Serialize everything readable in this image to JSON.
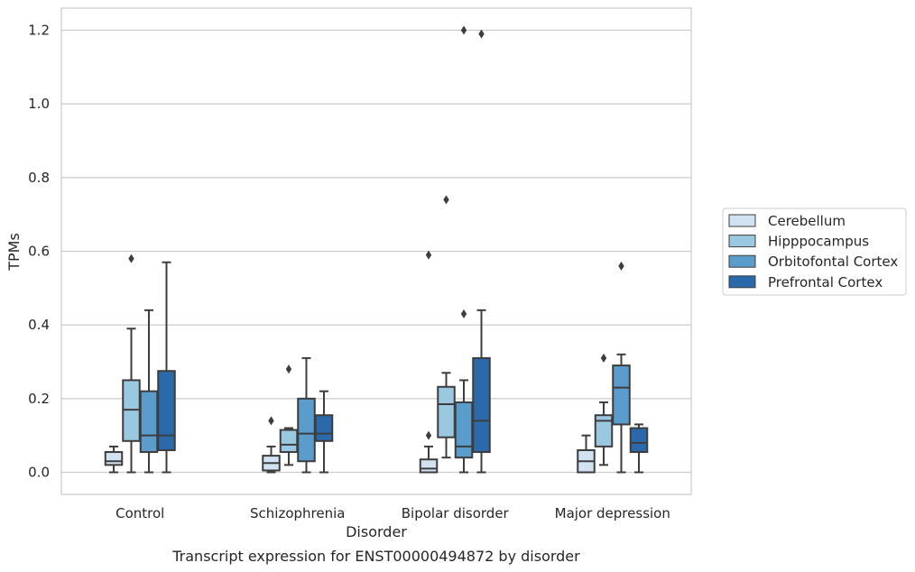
{
  "chart_data": {
    "type": "box",
    "caption": "Transcript expression for ENST00000494872 by disorder",
    "xlabel": "Disorder",
    "ylabel": "TPMs",
    "ylim": [
      -0.06,
      1.26
    ],
    "yticks": [
      0.0,
      0.2,
      0.4,
      0.6,
      0.8,
      1.0,
      1.2
    ],
    "ytick_labels": [
      "0.0",
      "0.2",
      "0.4",
      "0.6",
      "0.8",
      "1.0",
      "1.2"
    ],
    "grid": "horizontal",
    "legend_position": "right",
    "categories": [
      "Control",
      "Schizophrenia",
      "Bipolar disorder",
      "Major depression"
    ],
    "series": [
      {
        "name": "Cerebellum",
        "color": "#d1e2f2",
        "boxes": [
          {
            "whisker_low": 0.0,
            "q1": 0.02,
            "median": 0.03,
            "q3": 0.055,
            "whisker_high": 0.07,
            "outliers": []
          },
          {
            "whisker_low": 0.0,
            "q1": 0.005,
            "median": 0.025,
            "q3": 0.045,
            "whisker_high": 0.07,
            "outliers": [
              0.14
            ]
          },
          {
            "whisker_low": 0.0,
            "q1": 0.0,
            "median": 0.01,
            "q3": 0.035,
            "whisker_high": 0.07,
            "outliers": [
              0.1,
              0.59
            ]
          },
          {
            "whisker_low": 0.0,
            "q1": 0.0,
            "median": 0.03,
            "q3": 0.06,
            "whisker_high": 0.1,
            "outliers": []
          }
        ]
      },
      {
        "name": "Hipppocampus",
        "color": "#9ac8e0",
        "boxes": [
          {
            "whisker_low": 0.0,
            "q1": 0.085,
            "median": 0.17,
            "q3": 0.25,
            "whisker_high": 0.39,
            "outliers": [
              0.58
            ]
          },
          {
            "whisker_low": 0.02,
            "q1": 0.055,
            "median": 0.075,
            "q3": 0.115,
            "whisker_high": 0.12,
            "outliers": [
              0.28
            ]
          },
          {
            "whisker_low": 0.04,
            "q1": 0.095,
            "median": 0.185,
            "q3": 0.232,
            "whisker_high": 0.27,
            "outliers": [
              0.74
            ]
          },
          {
            "whisker_low": 0.02,
            "q1": 0.07,
            "median": 0.14,
            "q3": 0.155,
            "whisker_high": 0.19,
            "outliers": [
              0.31
            ]
          }
        ]
      },
      {
        "name": "Orbitofontal Cortex",
        "color": "#5a9dcc",
        "boxes": [
          {
            "whisker_low": 0.0,
            "q1": 0.055,
            "median": 0.1,
            "q3": 0.22,
            "whisker_high": 0.44,
            "outliers": []
          },
          {
            "whisker_low": 0.0,
            "q1": 0.03,
            "median": 0.105,
            "q3": 0.2,
            "whisker_high": 0.31,
            "outliers": []
          },
          {
            "whisker_low": 0.0,
            "q1": 0.04,
            "median": 0.07,
            "q3": 0.19,
            "whisker_high": 0.25,
            "outliers": [
              0.43,
              1.2
            ]
          },
          {
            "whisker_low": 0.0,
            "q1": 0.13,
            "median": 0.23,
            "q3": 0.29,
            "whisker_high": 0.32,
            "outliers": [
              0.56
            ]
          }
        ]
      },
      {
        "name": "Prefrontal Cortex",
        "color": "#2a6aaa",
        "boxes": [
          {
            "whisker_low": 0.0,
            "q1": 0.06,
            "median": 0.1,
            "q3": 0.275,
            "whisker_high": 0.57,
            "outliers": []
          },
          {
            "whisker_low": 0.0,
            "q1": 0.085,
            "median": 0.105,
            "q3": 0.155,
            "whisker_high": 0.22,
            "outliers": []
          },
          {
            "whisker_low": 0.0,
            "q1": 0.055,
            "median": 0.14,
            "q3": 0.31,
            "whisker_high": 0.44,
            "outliers": [
              1.19
            ]
          },
          {
            "whisker_low": 0.0,
            "q1": 0.055,
            "median": 0.08,
            "q3": 0.12,
            "whisker_high": 0.13,
            "outliers": []
          }
        ]
      }
    ]
  }
}
